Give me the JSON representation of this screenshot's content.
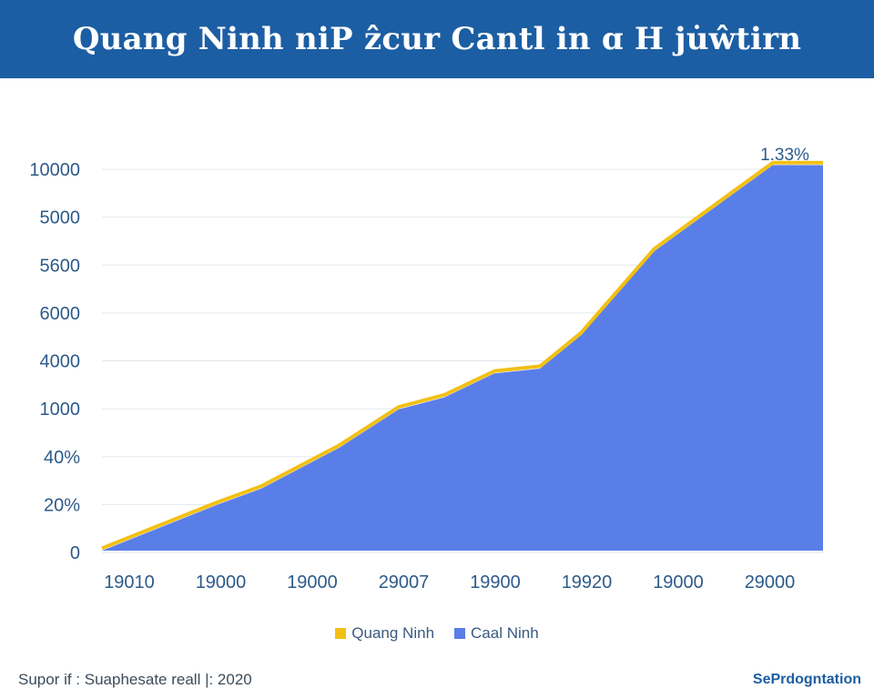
{
  "header": {
    "title": "Quang Ninh niP ẑcur Cantl in ɑ H ju̇ŵtirn"
  },
  "colors": {
    "header_bg": "#1c5ea3",
    "area_fill": "#5a7ee8",
    "line": "#f2c014",
    "axis_text": "#2d5a8a"
  },
  "chart_data": {
    "type": "area",
    "title": "Quang Ninh niP ẑcur Cantl in ɑ H ju̇ŵtirn",
    "xlabel": "",
    "ylabel": "",
    "ytick_labels": [
      "10000",
      "5000",
      "5600",
      "6000",
      "4000",
      "1000",
      "40%",
      "20%",
      "0"
    ],
    "xtick_labels": [
      "19010",
      "19000",
      "19000",
      "29007",
      "19900",
      "19920",
      "19000",
      "29000"
    ],
    "ylim": [
      0,
      8
    ],
    "grid": true,
    "legend_position": "bottom-center",
    "peak_annotation": "1.33%",
    "series": [
      {
        "name": "Quang Ninh",
        "role": "line",
        "color": "#f2c014",
        "values": [
          0.05,
          1.0,
          1.35,
          2.2,
          3.0,
          3.25,
          3.75,
          3.85,
          4.55,
          6.3,
          8.1,
          8.1
        ]
      },
      {
        "name": "Caal Ninh",
        "role": "area",
        "color": "#5a7ee8",
        "values": [
          0.0,
          0.95,
          1.3,
          2.15,
          2.95,
          3.2,
          3.7,
          3.8,
          4.5,
          6.25,
          8.05,
          8.05
        ]
      }
    ],
    "x_positions": [
      0,
      1.25,
      1.75,
      2.6,
      3.25,
      3.75,
      4.3,
      4.8,
      5.25,
      6.05,
      7.35,
      7.9
    ]
  },
  "legend": {
    "items": [
      {
        "label": "Quang Ninh",
        "color": "#f2c014"
      },
      {
        "label": "Caal Ninh",
        "color": "#5a7ee8"
      }
    ]
  },
  "footer": {
    "source": "Supor if : Suaphesate reall |: 2020",
    "brand": "SePrdogntation"
  }
}
